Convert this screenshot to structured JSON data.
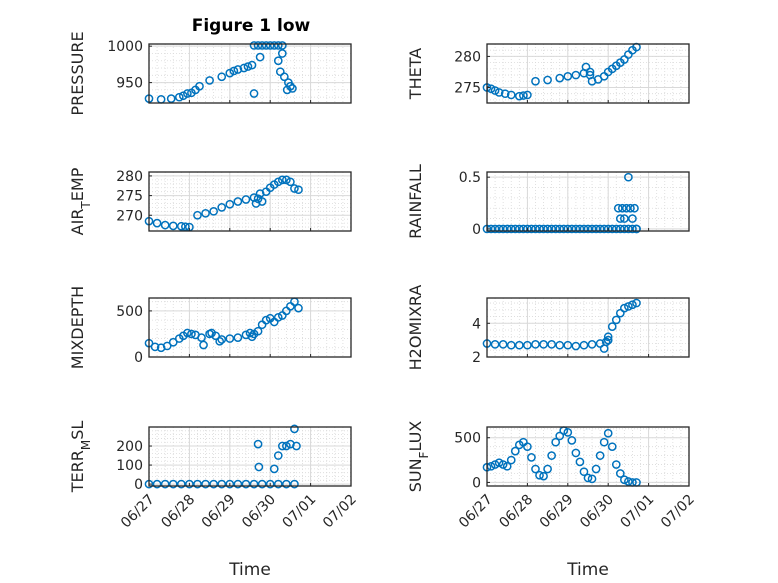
{
  "figure": {
    "title": "Figure 1 low",
    "marker_color": "#0072BD",
    "axis_color": "#262626",
    "grid_color": "#d9d9d9"
  },
  "chart_data": [
    {
      "type": "scatter",
      "panel": "top-left",
      "ylabel_parts": [
        {
          "t": "PRESSURE"
        }
      ],
      "ylim": [
        922,
        1003
      ],
      "yticks": [
        950,
        1000
      ],
      "ytick_labels": [
        "950",
        "1000"
      ],
      "xlim": [
        "06/27",
        "07/02"
      ],
      "xticks": [
        0,
        1,
        2,
        3,
        4,
        5
      ],
      "xtick_labels": [
        "06/27",
        "06/28",
        "06/29",
        "06/30",
        "07/01",
        "07/02"
      ],
      "show_xtick_labels": false,
      "xlabel": "",
      "series": [
        {
          "x": [
            0,
            0.3,
            0.55,
            0.75,
            0.85,
            0.95,
            1.05,
            1.15,
            1.25,
            1.5,
            1.8,
            2.0,
            2.1,
            2.2,
            2.35,
            2.45,
            2.55
          ],
          "y": [
            928,
            927,
            928,
            930,
            932,
            935,
            936,
            940,
            945,
            953,
            958,
            963,
            966,
            968,
            970,
            972,
            974
          ]
        },
        {
          "x": [
            2.6,
            2.7,
            2.8,
            2.9,
            3.0,
            3.1,
            3.2,
            3.3
          ],
          "y": [
            1001,
            1001,
            1001,
            1001,
            1001,
            1001,
            1001,
            1001
          ]
        },
        {
          "x": [
            3.2,
            3.25,
            3.35,
            3.45,
            3.5
          ],
          "y": [
            980,
            965,
            958,
            950,
            945
          ]
        },
        {
          "x": [
            2.6,
            2.75,
            3.3,
            3.42,
            3.55
          ],
          "y": [
            935,
            985,
            990,
            940,
            942
          ]
        }
      ]
    },
    {
      "type": "scatter",
      "panel": "top-right",
      "ylabel_parts": [
        {
          "t": "THETA"
        }
      ],
      "ylim": [
        272.5,
        282
      ],
      "yticks": [
        275,
        280
      ],
      "ytick_labels": [
        "275",
        "280"
      ],
      "xlim": [
        "06/27",
        "07/02"
      ],
      "xticks": [
        0,
        1,
        2,
        3,
        4,
        5
      ],
      "xtick_labels": [
        "06/27",
        "06/28",
        "06/29",
        "06/30",
        "07/01",
        "07/02"
      ],
      "show_xtick_labels": false,
      "xlabel": "",
      "series": [
        {
          "x": [
            0,
            0.1,
            0.2,
            0.3,
            0.45,
            0.6,
            0.8,
            0.9,
            1.0,
            1.2,
            1.5,
            1.8,
            2.0,
            2.2,
            2.4,
            2.55,
            2.6,
            2.75,
            2.9,
            3.0,
            3.1,
            3.2,
            3.3,
            3.4,
            3.5,
            3.6,
            3.7
          ],
          "y": [
            275,
            274.8,
            274.5,
            274.2,
            274.0,
            273.8,
            273.6,
            273.7,
            273.8,
            276,
            276.2,
            276.5,
            276.8,
            277,
            277.3,
            277.5,
            276.0,
            276.3,
            276.8,
            277.5,
            278,
            278.5,
            279,
            279.5,
            280.3,
            281,
            281.5
          ]
        },
        {
          "x": [
            2.45,
            2.55
          ],
          "y": [
            278.3,
            277.0
          ]
        }
      ]
    },
    {
      "type": "scatter",
      "panel": "row2-left",
      "ylabel_parts": [
        {
          "t": "AIR"
        },
        {
          "t": "T",
          "sub": true
        },
        {
          "t": "EMP"
        }
      ],
      "ylim": [
        266,
        281
      ],
      "yticks": [
        270,
        275,
        280
      ],
      "ytick_labels": [
        "270",
        "275",
        "280"
      ],
      "xlim": [
        "06/27",
        "07/02"
      ],
      "xticks": [
        0,
        1,
        2,
        3,
        4,
        5
      ],
      "xtick_labels": [
        "06/27",
        "06/28",
        "06/29",
        "06/30",
        "07/01",
        "07/02"
      ],
      "show_xtick_labels": false,
      "xlabel": "",
      "series": [
        {
          "x": [
            0,
            0.2,
            0.4,
            0.6,
            0.8,
            0.9,
            1.0,
            1.2,
            1.4,
            1.6,
            1.8,
            2.0,
            2.2,
            2.4,
            2.6,
            2.7,
            2.8,
            2.9,
            3.0,
            3.1,
            3.2,
            3.3,
            3.4,
            3.5,
            3.6,
            3.7
          ],
          "y": [
            268.5,
            268,
            267.5,
            267.3,
            267.2,
            267.1,
            267,
            270,
            270.5,
            271,
            272,
            272.8,
            273.5,
            274,
            274.5,
            274.2,
            273.5,
            276,
            277,
            277.8,
            278.5,
            279,
            279,
            278.5,
            276.8,
            276.5
          ]
        },
        {
          "x": [
            2.65,
            2.75
          ],
          "y": [
            273.0,
            275.5
          ]
        }
      ]
    },
    {
      "type": "scatter",
      "panel": "row2-right",
      "ylabel_parts": [
        {
          "t": "RAINFALL"
        }
      ],
      "ylim": [
        -0.02,
        0.55
      ],
      "yticks": [
        0,
        0.5
      ],
      "ytick_labels": [
        "0",
        "0.5"
      ],
      "xlim": [
        "06/27",
        "07/02"
      ],
      "xticks": [
        0,
        1,
        2,
        3,
        4,
        5
      ],
      "xtick_labels": [
        "06/27",
        "06/28",
        "06/29",
        "06/30",
        "07/01",
        "07/02"
      ],
      "show_xtick_labels": false,
      "xlabel": "",
      "series": [
        {
          "x": [
            0,
            0.1,
            0.2,
            0.3,
            0.4,
            0.5,
            0.6,
            0.7,
            0.8,
            0.9,
            1.0,
            1.1,
            1.2,
            1.3,
            1.4,
            1.5,
            1.6,
            1.7,
            1.8,
            1.9,
            2.0,
            2.1,
            2.2,
            2.3,
            2.4,
            2.5,
            2.6,
            2.7,
            2.8,
            2.9,
            3.0,
            3.1,
            3.2,
            3.3,
            3.4,
            3.5,
            3.6,
            3.7
          ],
          "y": [
            0,
            0,
            0,
            0,
            0,
            0,
            0,
            0,
            0,
            0,
            0,
            0,
            0,
            0,
            0,
            0,
            0,
            0,
            0,
            0,
            0,
            0,
            0,
            0,
            0,
            0,
            0,
            0,
            0,
            0,
            0,
            0,
            0,
            0,
            0,
            0,
            0,
            0
          ]
        },
        {
          "x": [
            3.25,
            3.3,
            3.35,
            3.4,
            3.45,
            3.5,
            3.55,
            3.6,
            3.65,
            3.7
          ],
          "y": [
            0.2,
            0.1,
            0.2,
            0.1,
            0.2,
            0.5,
            0.2,
            0.1,
            0.2,
            0.0
          ]
        }
      ]
    },
    {
      "type": "scatter",
      "panel": "row3-left",
      "ylabel_parts": [
        {
          "t": "MIXDEPTH"
        }
      ],
      "ylim": [
        0,
        640
      ],
      "yticks": [
        0,
        500
      ],
      "ytick_labels": [
        "0",
        "500"
      ],
      "xlim": [
        "06/27",
        "07/02"
      ],
      "xticks": [
        0,
        1,
        2,
        3,
        4,
        5
      ],
      "xtick_labels": [
        "06/27",
        "06/28",
        "06/29",
        "06/30",
        "07/01",
        "07/02"
      ],
      "show_xtick_labels": false,
      "xlabel": "",
      "series": [
        {
          "x": [
            0,
            0.15,
            0.3,
            0.45,
            0.6,
            0.75,
            0.85,
            0.95,
            1.05,
            1.15,
            1.3,
            1.5,
            1.65,
            1.8,
            2.0,
            2.2,
            2.4,
            2.5,
            2.6,
            2.7,
            2.8,
            2.9,
            3.0,
            3.1,
            3.2,
            3.3,
            3.4,
            3.5,
            3.6,
            3.7
          ],
          "y": [
            150,
            110,
            100,
            120,
            160,
            200,
            230,
            260,
            250,
            240,
            210,
            250,
            230,
            190,
            200,
            210,
            240,
            260,
            250,
            280,
            350,
            400,
            420,
            380,
            430,
            450,
            500,
            550,
            600,
            530
          ]
        },
        {
          "x": [
            1.35,
            1.55,
            1.75,
            2.55
          ],
          "y": [
            130,
            260,
            170,
            220
          ]
        }
      ]
    },
    {
      "type": "scatter",
      "panel": "row3-right",
      "ylabel_parts": [
        {
          "t": "H2OMIXRA"
        }
      ],
      "ylim": [
        2,
        5.5
      ],
      "yticks": [
        2,
        4
      ],
      "ytick_labels": [
        "2",
        "4"
      ],
      "xlim": [
        "06/27",
        "07/02"
      ],
      "xticks": [
        0,
        1,
        2,
        3,
        4,
        5
      ],
      "xtick_labels": [
        "06/27",
        "06/28",
        "06/29",
        "06/30",
        "07/01",
        "07/02"
      ],
      "show_xtick_labels": false,
      "xlabel": "",
      "series": [
        {
          "x": [
            0,
            0.2,
            0.4,
            0.6,
            0.8,
            1.0,
            1.2,
            1.4,
            1.6,
            1.8,
            2.0,
            2.2,
            2.4,
            2.6,
            2.8,
            3.0,
            3.1,
            3.2,
            3.3,
            3.4,
            3.5,
            3.6,
            3.7
          ],
          "y": [
            2.8,
            2.75,
            2.75,
            2.7,
            2.7,
            2.7,
            2.75,
            2.75,
            2.75,
            2.7,
            2.7,
            2.65,
            2.7,
            2.75,
            2.8,
            3.2,
            3.8,
            4.2,
            4.6,
            4.9,
            5.0,
            5.1,
            5.2
          ]
        },
        {
          "x": [
            2.9,
            2.95,
            3.0
          ],
          "y": [
            2.5,
            2.9,
            3.0
          ]
        }
      ]
    },
    {
      "type": "scatter",
      "panel": "bottom-left",
      "ylabel_parts": [
        {
          "t": "TERR"
        },
        {
          "t": "M",
          "sub": true
        },
        {
          "t": "SL"
        }
      ],
      "ylim": [
        -10,
        300
      ],
      "yticks": [
        0,
        100,
        200
      ],
      "ytick_labels": [
        "0",
        "100",
        "200"
      ],
      "xlim": [
        "06/27",
        "07/02"
      ],
      "xticks": [
        0,
        1,
        2,
        3,
        4,
        5
      ],
      "xtick_labels": [
        "06/27",
        "06/28",
        "06/29",
        "06/30",
        "07/01",
        "07/02"
      ],
      "show_xtick_labels": true,
      "xlabel": "Time",
      "series": [
        {
          "x": [
            0,
            0.2,
            0.4,
            0.6,
            0.8,
            1.0,
            1.2,
            1.4,
            1.6,
            1.8,
            2.0,
            2.2,
            2.4,
            2.6,
            2.8,
            3.0,
            3.2,
            3.4,
            3.6
          ],
          "y": [
            0,
            0,
            0,
            0,
            0,
            0,
            0,
            0,
            0,
            0,
            0,
            0,
            0,
            0,
            0,
            0,
            0,
            0,
            0
          ]
        },
        {
          "x": [
            2.7,
            2.72,
            3.1,
            3.2,
            3.3,
            3.4,
            3.5,
            3.6,
            3.65
          ],
          "y": [
            210,
            90,
            80,
            150,
            200,
            200,
            210,
            290,
            200
          ]
        }
      ]
    },
    {
      "type": "scatter",
      "panel": "bottom-right",
      "ylabel_parts": [
        {
          "t": "SUN"
        },
        {
          "t": "F",
          "sub": true
        },
        {
          "t": "LUX"
        }
      ],
      "ylim": [
        -40,
        620
      ],
      "yticks": [
        0,
        500
      ],
      "ytick_labels": [
        "0",
        "500"
      ],
      "xlim": [
        "06/27",
        "07/02"
      ],
      "xticks": [
        0,
        1,
        2,
        3,
        4,
        5
      ],
      "xtick_labels": [
        "06/27",
        "06/28",
        "06/29",
        "06/30",
        "07/01",
        "07/02"
      ],
      "show_xtick_labels": true,
      "xlabel": "Time",
      "series": [
        {
          "x": [
            0,
            0.1,
            0.2,
            0.3,
            0.4,
            0.5,
            0.6,
            0.7,
            0.8,
            0.9,
            1.0,
            1.1,
            1.2,
            1.3,
            1.4,
            1.5,
            1.6,
            1.7,
            1.8,
            1.9,
            2.0,
            2.1,
            2.2,
            2.3,
            2.4,
            2.5,
            2.6,
            2.7,
            2.8,
            2.9,
            3.0,
            3.1,
            3.2,
            3.3,
            3.4,
            3.5,
            3.6,
            3.7
          ],
          "y": [
            170,
            180,
            200,
            220,
            200,
            180,
            250,
            350,
            420,
            450,
            400,
            280,
            150,
            80,
            70,
            150,
            300,
            450,
            520,
            580,
            560,
            470,
            330,
            230,
            120,
            50,
            40,
            150,
            300,
            450,
            550,
            400,
            200,
            100,
            30,
            10,
            0,
            0
          ]
        }
      ]
    }
  ]
}
